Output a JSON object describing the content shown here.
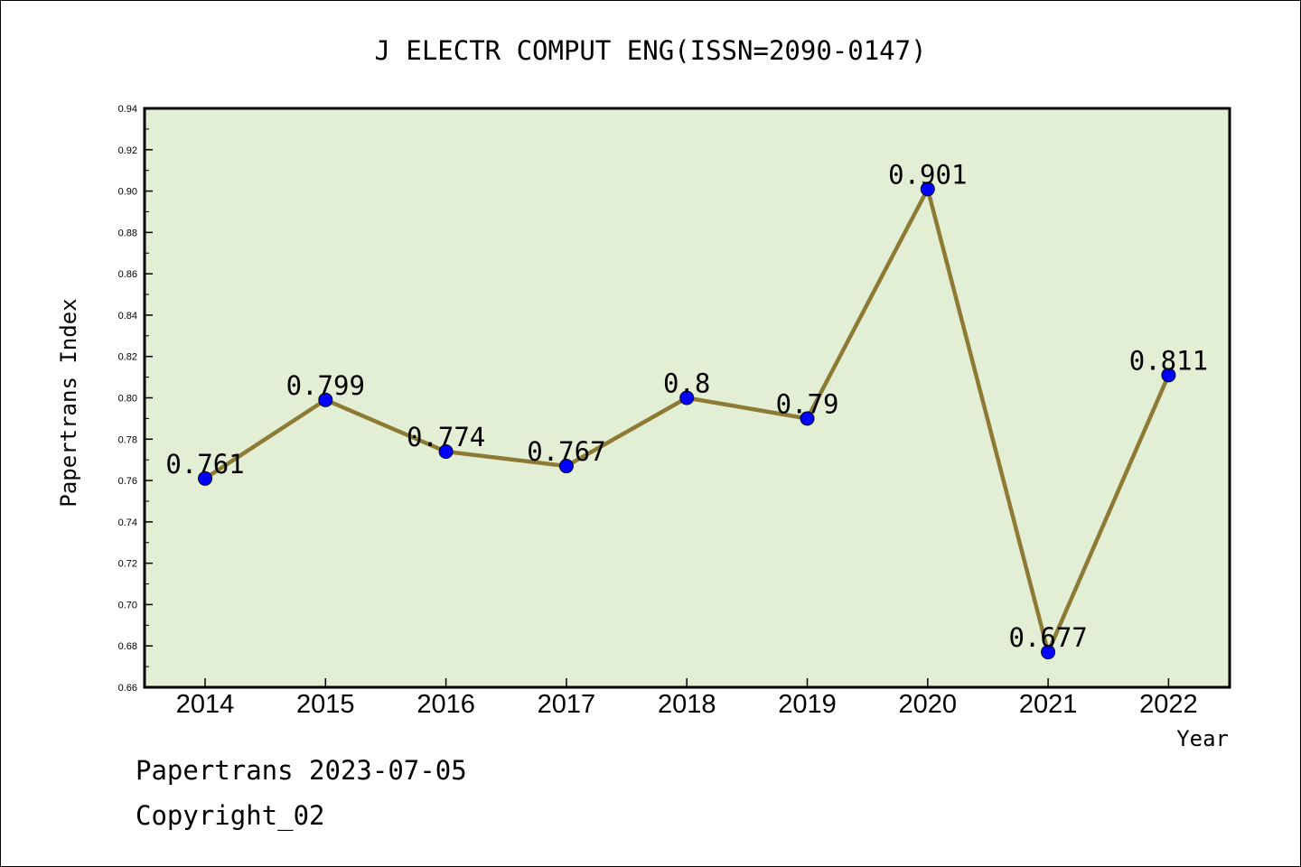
{
  "chart_data": {
    "type": "line",
    "title": "J ELECTR COMPUT ENG(ISSN=2090-0147)",
    "xlabel": "Year",
    "ylabel": "Papertrans Index",
    "categories": [
      "2014",
      "2015",
      "2016",
      "2017",
      "2018",
      "2019",
      "2020",
      "2021",
      "2022"
    ],
    "series": [
      {
        "values": [
          0.761,
          0.799,
          0.774,
          0.767,
          0.8,
          0.79,
          0.901,
          0.677,
          0.811
        ],
        "labels": [
          "0.761",
          "0.799",
          "0.774",
          "0.767",
          "0.8",
          "0.79",
          "0.901",
          "0.677",
          "0.811"
        ]
      }
    ],
    "ylim": [
      0.66,
      0.94
    ],
    "yticks": [
      "0.66",
      "0.68",
      "0.70",
      "0.72",
      "0.74",
      "0.76",
      "0.78",
      "0.80",
      "0.82",
      "0.84",
      "0.86",
      "0.88",
      "0.90",
      "0.92",
      "0.94"
    ],
    "grid": false,
    "legend": "none",
    "colors": {
      "plot_background": "#e2efd4",
      "line": "#8c7a35",
      "marker": "#0000ff",
      "axis": "#000000"
    }
  },
  "footer": {
    "line1": "Papertrans 2023-07-05",
    "line2": "Copyright_02"
  }
}
